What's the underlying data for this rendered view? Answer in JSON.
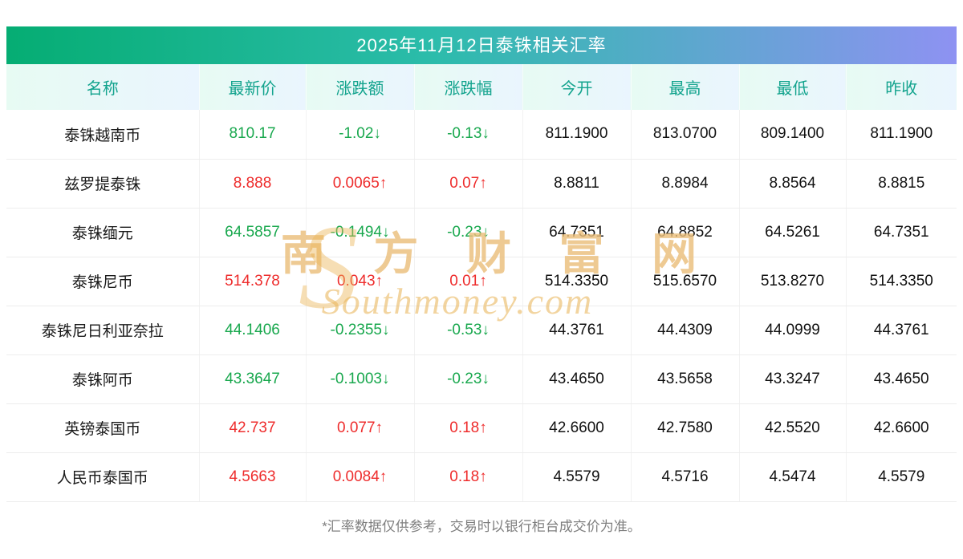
{
  "page": {
    "title": "2025年11月12日泰铢相关汇率",
    "footnote": "*汇率数据仅供参考，交易时以银行柜台成交价为准。"
  },
  "watermark": {
    "monogram": "S",
    "line1": "南 方 财 富 网",
    "line2": "Southmoney.com"
  },
  "colors": {
    "up": "#ee2c2c",
    "down": "#19a84e"
  },
  "table": {
    "columns": [
      "名称",
      "最新价",
      "涨跌额",
      "涨跌幅",
      "今开",
      "最高",
      "最低",
      "昨收"
    ],
    "rows": [
      {
        "name": "泰铢越南币",
        "last": "810.17",
        "change": "-1.02↓",
        "pct": "-0.13↓",
        "dir": "down",
        "open": "811.1900",
        "high": "813.0700",
        "low": "809.1400",
        "prev": "811.1900"
      },
      {
        "name": "兹罗提泰铢",
        "last": "8.888",
        "change": "0.0065↑",
        "pct": "0.07↑",
        "dir": "up",
        "open": "8.8811",
        "high": "8.8984",
        "low": "8.8564",
        "prev": "8.8815"
      },
      {
        "name": "泰铢缅元",
        "last": "64.5857",
        "change": "-0.1494↓",
        "pct": "-0.23↓",
        "dir": "down",
        "open": "64.7351",
        "high": "64.8852",
        "low": "64.5261",
        "prev": "64.7351"
      },
      {
        "name": "泰铢尼币",
        "last": "514.378",
        "change": "0.043↑",
        "pct": "0.01↑",
        "dir": "up",
        "open": "514.3350",
        "high": "515.6570",
        "low": "513.8270",
        "prev": "514.3350"
      },
      {
        "name": "泰铢尼日利亚奈拉",
        "last": "44.1406",
        "change": "-0.2355↓",
        "pct": "-0.53↓",
        "dir": "down",
        "open": "44.3761",
        "high": "44.4309",
        "low": "44.0999",
        "prev": "44.3761"
      },
      {
        "name": "泰铢阿币",
        "last": "43.3647",
        "change": "-0.1003↓",
        "pct": "-0.23↓",
        "dir": "down",
        "open": "43.4650",
        "high": "43.5658",
        "low": "43.3247",
        "prev": "43.4650"
      },
      {
        "name": "英镑泰国币",
        "last": "42.737",
        "change": "0.077↑",
        "pct": "0.18↑",
        "dir": "up",
        "open": "42.6600",
        "high": "42.7580",
        "low": "42.5520",
        "prev": "42.6600"
      },
      {
        "name": "人民币泰国币",
        "last": "4.5663",
        "change": "0.0084↑",
        "pct": "0.18↑",
        "dir": "up",
        "open": "4.5579",
        "high": "4.5716",
        "low": "4.5474",
        "prev": "4.5579"
      }
    ]
  }
}
